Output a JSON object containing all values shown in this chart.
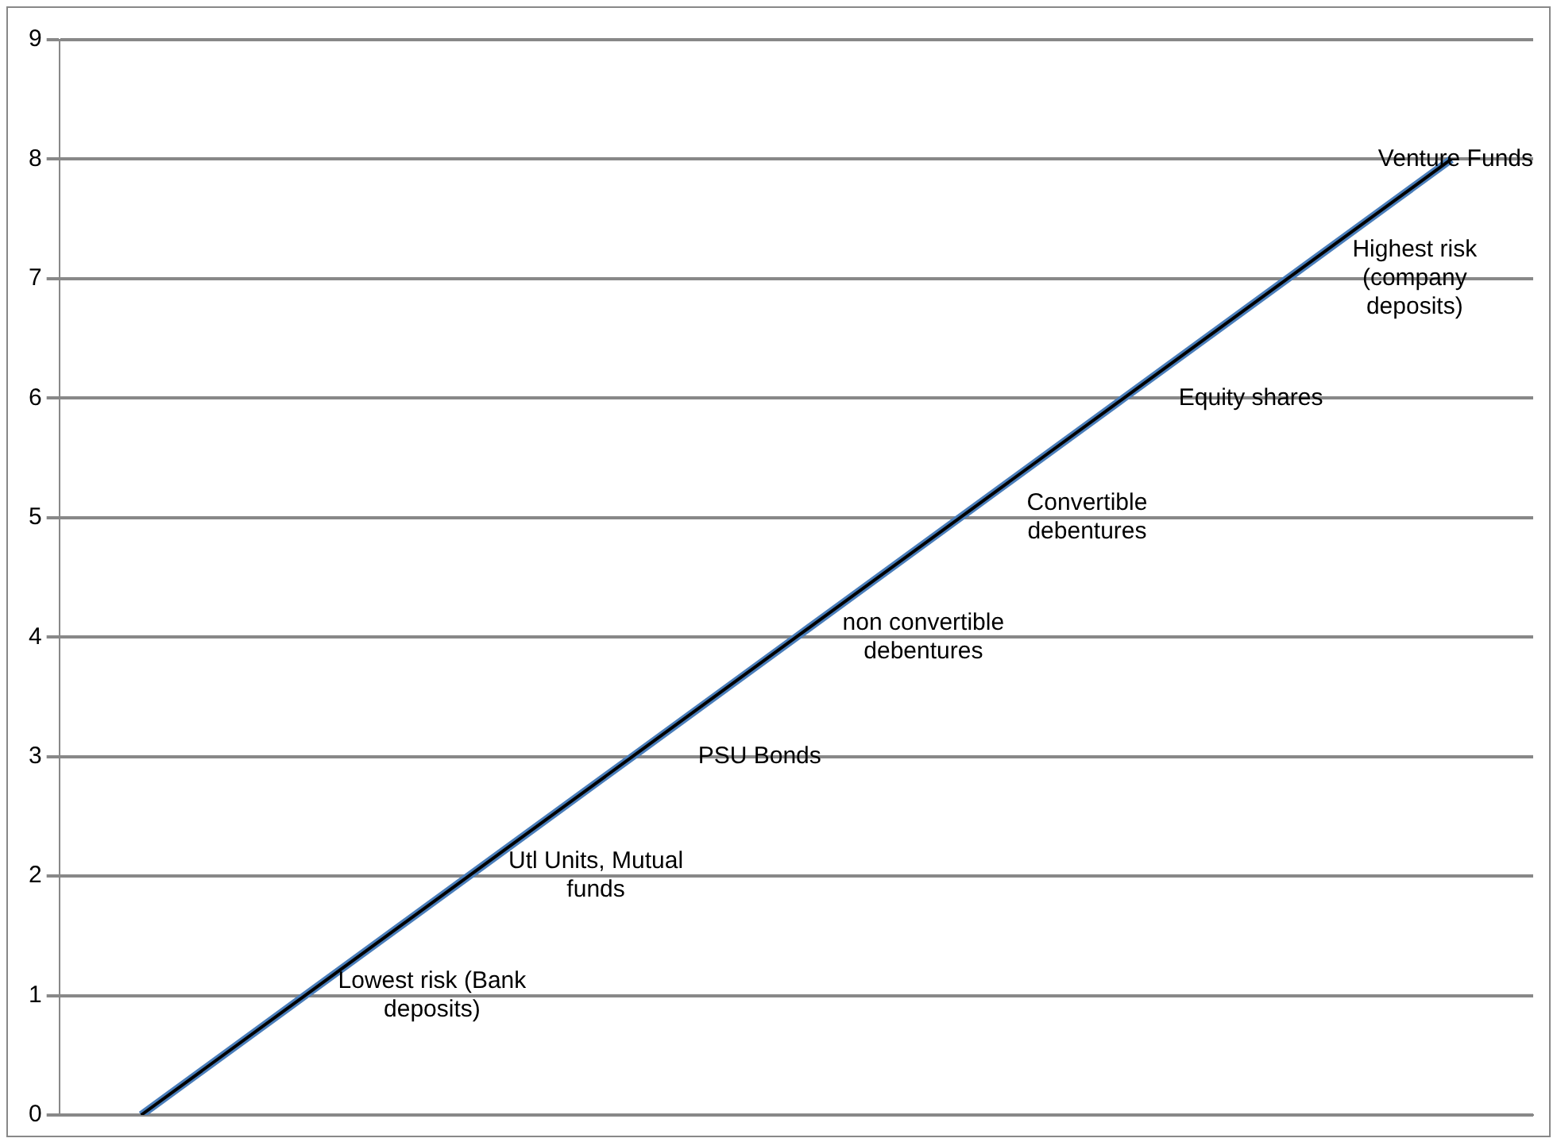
{
  "chart_data": {
    "type": "line",
    "categories": [
      null,
      null,
      null,
      null,
      null,
      null,
      null,
      null,
      null
    ],
    "series": [
      {
        "color": "#4a7ebb",
        "values": [
          0,
          1,
          2,
          3,
          4,
          5,
          6,
          7,
          8
        ]
      },
      {
        "color": "#000000",
        "values": [
          0,
          1,
          2,
          3,
          4,
          5,
          6,
          7,
          8
        ]
      }
    ],
    "ylim": [
      0,
      9
    ],
    "yticks": [
      0,
      1,
      2,
      3,
      4,
      5,
      6,
      7,
      8,
      9
    ],
    "grid": "y",
    "legend": false,
    "marker": "none",
    "tick_labels": "y",
    "annotations": [
      "Lowest risk (Bank deposits)",
      "Utl Units, Mutual funds",
      "PSU Bonds",
      "non convertible debentures",
      "Convertible debentures",
      "Equity shares",
      "Highest risk (company deposits)",
      "Venture Funds"
    ]
  }
}
